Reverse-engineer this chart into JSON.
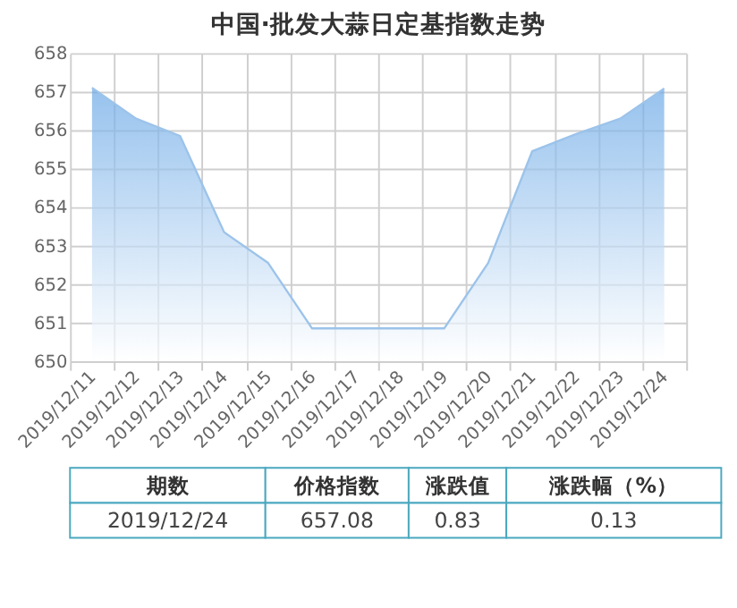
{
  "chart_data": {
    "type": "area",
    "title": "中国·批发大蒜日定基指数走势",
    "categories": [
      "2019/12/11",
      "2019/12/12",
      "2019/12/13",
      "2019/12/14",
      "2019/12/15",
      "2019/12/16",
      "2019/12/17",
      "2019/12/18",
      "2019/12/19",
      "2019/12/20",
      "2019/12/21",
      "2019/12/22",
      "2019/12/23",
      "2019/12/24"
    ],
    "series": [
      {
        "color": "#6aa8e6",
        "values": [
          657.1,
          656.3,
          655.85,
          653.35,
          652.55,
          650.85,
          650.85,
          650.85,
          650.85,
          652.55,
          655.45,
          655.9,
          656.3,
          657.08
        ]
      }
    ],
    "ylim": [
      650,
      658
    ],
    "yticks": [
      650,
      651,
      652,
      653,
      654,
      655,
      656,
      657,
      658
    ],
    "grid": true,
    "annotations": [
      "期数",
      "价格指数",
      "涨跌值",
      "涨跌幅（%）",
      "2019/12/24",
      "657.08",
      "0.83",
      "0.13"
    ]
  }
}
